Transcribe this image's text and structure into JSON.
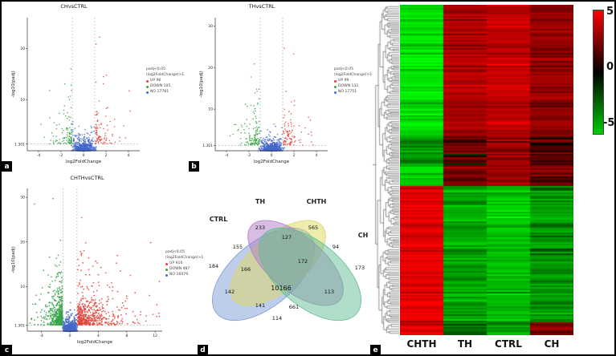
{
  "figure": {
    "panel_labels": {
      "a": "a",
      "b": "b",
      "c": "c",
      "d": "d",
      "e": "e"
    }
  },
  "chart_data": [
    {
      "id": "volcano_ch_vs_ctrl",
      "type": "scatter",
      "title": "CHvsCTRL",
      "xlabel": "log2FoldChange",
      "ylabel": "-log10(padj)",
      "xlim": [
        -5,
        5
      ],
      "ylim": [
        0,
        26
      ],
      "xticks": [
        -4,
        -2,
        0,
        2,
        4
      ],
      "yticks": [
        1.301,
        10,
        20
      ],
      "threshold_x": [
        -1,
        1
      ],
      "threshold_y": 1.301,
      "legend_title": "padj<0.05",
      "legend_subtitle": "(log2FoldChange)>1",
      "series": [
        {
          "name": "UP",
          "count": 96,
          "label": "UP 96",
          "color": "#e2453c"
        },
        {
          "name": "DOWN",
          "count": 105,
          "label": "DOWN 105",
          "color": "#3aa54b"
        },
        {
          "name": "NO",
          "count": 17781,
          "label": "NO 17781",
          "color": "#4468cc"
        }
      ]
    },
    {
      "id": "volcano_th_vs_ctrl",
      "type": "scatter",
      "title": "THvsCTRL",
      "xlabel": "log2FoldChange",
      "ylabel": "-log10(padj)",
      "xlim": [
        -5,
        5
      ],
      "ylim": [
        0,
        32
      ],
      "xticks": [
        -4,
        -2,
        0,
        2,
        4
      ],
      "yticks": [
        1.301,
        10,
        20,
        30
      ],
      "threshold_x": [
        -1,
        1
      ],
      "threshold_y": 1.301,
      "legend_title": "padj<0.05",
      "legend_subtitle": "(log2FoldChange)>1",
      "series": [
        {
          "name": "UP",
          "count": 99,
          "label": "UP 99",
          "color": "#e2453c"
        },
        {
          "name": "DOWN",
          "count": 132,
          "label": "DOWN 132",
          "color": "#3aa54b"
        },
        {
          "name": "NO",
          "count": 17751,
          "label": "NO 17751",
          "color": "#4468cc"
        }
      ]
    },
    {
      "id": "volcano_chth_vs_ctrl",
      "type": "scatter",
      "title": "CHTHvsCTRL",
      "xlabel": "log2FoldChange",
      "ylabel": "-log10(padj)",
      "xlim": [
        -6,
        13
      ],
      "ylim": [
        0,
        32
      ],
      "xticks": [
        -4,
        0,
        4,
        8,
        12
      ],
      "yticks": [
        1.301,
        10,
        20,
        30
      ],
      "threshold_x": [
        -1,
        1
      ],
      "threshold_y": 1.301,
      "legend_title": "padj<0.05",
      "legend_subtitle": "(log2FoldChange)>1",
      "series": [
        {
          "name": "UP",
          "count": 916,
          "label": "UP 916",
          "color": "#e2453c"
        },
        {
          "name": "DOWN",
          "count": 987,
          "label": "DOWN 987",
          "color": "#3aa54b"
        },
        {
          "name": "NO",
          "count": 16079,
          "label": "NO 16079",
          "color": "#4468cc"
        }
      ]
    },
    {
      "id": "venn_deg_overlap",
      "type": "venn",
      "sets": [
        {
          "name": "CTRL",
          "color": "#7e9bd3"
        },
        {
          "name": "TH",
          "color": "#ddd75f"
        },
        {
          "name": "CHTH",
          "color": "#b07cc6"
        },
        {
          "name": "CH",
          "color": "#62be92"
        }
      ],
      "regions": [
        {
          "sets": "CTRL",
          "value": 184
        },
        {
          "sets": "TH",
          "value": 233
        },
        {
          "sets": "CHTH",
          "value": 565
        },
        {
          "sets": "CH",
          "value": 173
        },
        {
          "sets": "CTRL∩TH",
          "value": 155
        },
        {
          "sets": "TH∩CHTH",
          "value": 127
        },
        {
          "sets": "CHTH∩CH",
          "value": 94
        },
        {
          "sets": "CTRL∩TH∩CHTH",
          "value": 166
        },
        {
          "sets": "TH∩CHTH∩CH",
          "value": 172
        },
        {
          "sets": "CTRL∩CHTH",
          "value": 142
        },
        {
          "sets": "CTRL∩TH∩CHTH∩CH",
          "value": 10166
        },
        {
          "sets": "TH∩CH",
          "value": 113
        },
        {
          "sets": "CTRL∩TH∩CH",
          "value": 141
        },
        {
          "sets": "CTRL∩CHTH∩CH",
          "value": 661
        },
        {
          "sets": "CTRL∩CH",
          "value": 114
        }
      ]
    },
    {
      "id": "heatmap_deg",
      "type": "heatmap",
      "columns": [
        "CHTH",
        "TH",
        "CTRL",
        "CH"
      ],
      "colorbar": {
        "max": 5,
        "mid": 0,
        "min": -5,
        "max_label": "5",
        "mid_label": "0",
        "min_label": "-5",
        "high_color": "#ff0000",
        "mid_color": "#000000",
        "low_color": "#00cc00"
      },
      "row_blocks": [
        {
          "from": 0.0,
          "to": 0.4,
          "means": [
            -4.2,
            3.0,
            3.5,
            2.4
          ],
          "noise": 1.5
        },
        {
          "from": 0.4,
          "to": 0.49,
          "means": [
            -2.2,
            1.4,
            2.4,
            1.2
          ],
          "noise": 2.6
        },
        {
          "from": 0.49,
          "to": 0.55,
          "means": [
            -3.8,
            1.8,
            2.8,
            1.6
          ],
          "noise": 1.8
        },
        {
          "from": 0.55,
          "to": 0.96,
          "means": [
            4.3,
            -2.8,
            -3.4,
            -2.4
          ],
          "noise": 1.5
        },
        {
          "from": 0.96,
          "to": 1.0,
          "means": [
            3.8,
            -1.6,
            -2.6,
            1.8
          ],
          "noise": 2.0
        }
      ]
    }
  ]
}
